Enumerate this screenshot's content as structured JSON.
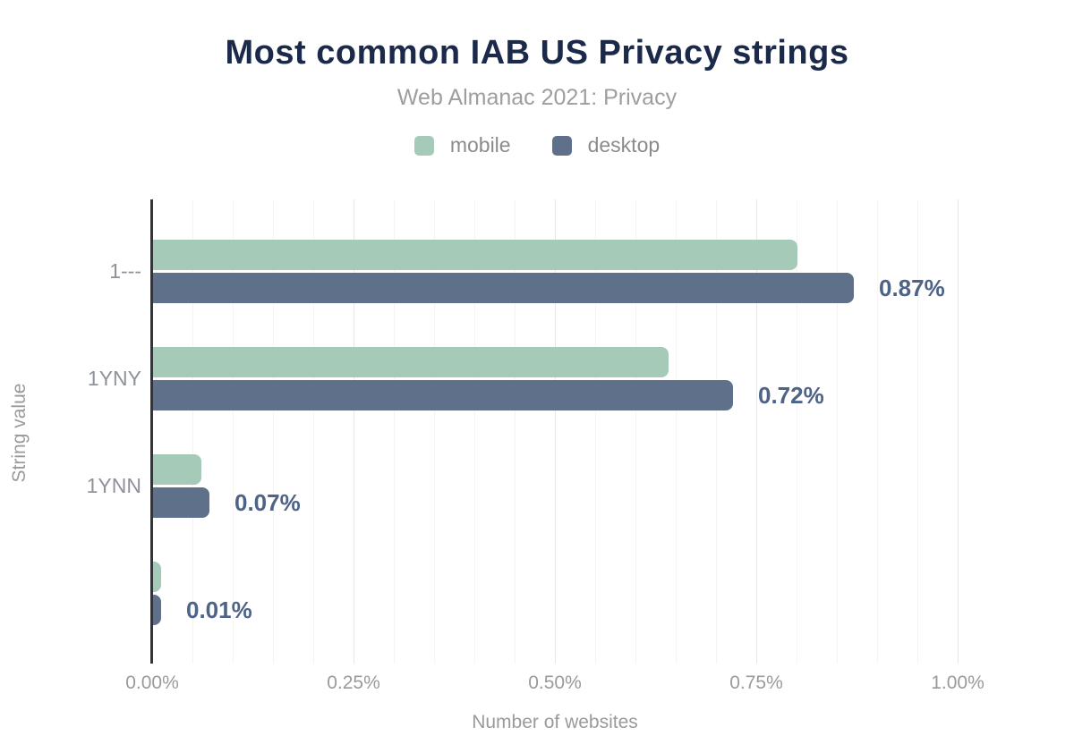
{
  "chart_data": {
    "type": "bar",
    "orientation": "horizontal",
    "title": "Most common IAB US Privacy strings",
    "subtitle": "Web Almanac 2021: Privacy",
    "xlabel": "Number of websites",
    "ylabel": "String value",
    "categories": [
      "1---",
      "1YNY",
      "1YNN",
      ""
    ],
    "series": [
      {
        "name": "mobile",
        "color": "#a6cab8",
        "values": [
          0.8,
          0.64,
          0.06,
          0.01
        ]
      },
      {
        "name": "desktop",
        "color": "#5e708a",
        "values": [
          0.87,
          0.72,
          0.07,
          0.01
        ]
      }
    ],
    "value_labels": [
      "0.87%",
      "0.72%",
      "0.07%",
      "0.01%"
    ],
    "xlim": [
      0,
      1.0
    ],
    "xticks": [
      {
        "value": 0.0,
        "label": "0.00%"
      },
      {
        "value": 0.25,
        "label": "0.25%"
      },
      {
        "value": 0.5,
        "label": "0.50%"
      },
      {
        "value": 0.75,
        "label": "0.75%"
      },
      {
        "value": 1.0,
        "label": "1.00%"
      }
    ],
    "grid": {
      "minor_step": 0.05,
      "major_step": 0.25,
      "shown": true
    },
    "legend_position": "top"
  },
  "colors": {
    "background": "#ffffff",
    "title_text": "#1b2a4a",
    "subtitle_text": "#9e9e9e",
    "legend_text": "#8b8b8b",
    "axis_text": "#9a9a9a",
    "category_text": "#8e9299",
    "value_label_text": "#4d6388",
    "axis_line": "#333437",
    "grid_minor": "#f4f4f4",
    "grid_major": "#e7e7e7"
  }
}
